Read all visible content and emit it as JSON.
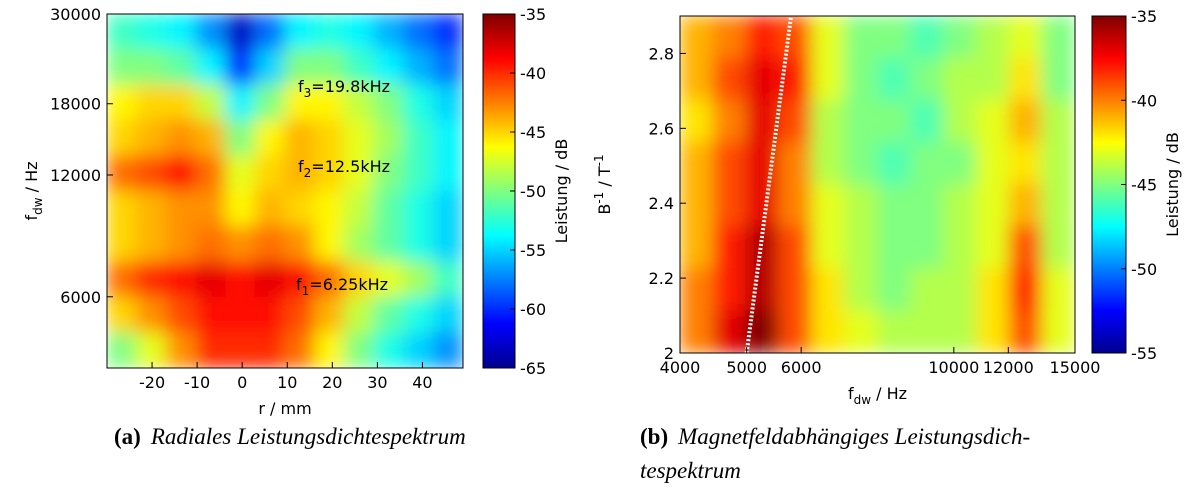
{
  "chart_data": [
    {
      "type": "contour",
      "xlabel": [
        {
          "t": "r / mm"
        }
      ],
      "ylabel": [
        {
          "t": "f"
        },
        {
          "t": "dw",
          "sub": true
        },
        {
          "t": " / Hz"
        }
      ],
      "colorbar_label": "Leistung / dB",
      "xscale": "linear",
      "yscale": "log",
      "xlim": [
        -30,
        49
      ],
      "ylim": [
        4000,
        30000
      ],
      "xticks": [
        -20,
        -10,
        0,
        10,
        20,
        30,
        40
      ],
      "yticks": [
        6000,
        12000,
        18000,
        30000
      ],
      "clim": [
        -65,
        -35
      ],
      "cticks": [
        -35,
        -40,
        -45,
        -50,
        -55,
        -60,
        -65
      ],
      "annotations": [
        [
          {
            "t": "f"
          },
          {
            "t": "3",
            "sub": true
          },
          {
            "t": "=19.8kHz"
          }
        ],
        [
          {
            "t": "f"
          },
          {
            "t": "2",
            "sub": true
          },
          {
            "t": "=12.5kHz"
          }
        ],
        [
          {
            "t": "f"
          },
          {
            "t": "1",
            "sub": true
          },
          {
            "t": "=6.25kHz"
          }
        ]
      ],
      "z": [
        [
          -52,
          -53,
          -54,
          -57,
          -63,
          -58,
          -54,
          -53,
          -54,
          -56,
          -58,
          -60
        ],
        [
          -50,
          -50,
          -51,
          -54,
          -60,
          -55,
          -50,
          -50,
          -52,
          -54,
          -56,
          -58
        ],
        [
          -46,
          -45,
          -45,
          -48,
          -54,
          -50,
          -46,
          -46,
          -48,
          -50,
          -53,
          -55
        ],
        [
          -45,
          -44,
          -43,
          -44,
          -50,
          -46,
          -44,
          -45,
          -47,
          -49,
          -52,
          -54
        ],
        [
          -42,
          -41,
          -39,
          -42,
          -47,
          -45,
          -44,
          -45,
          -47,
          -50,
          -52,
          -54
        ],
        [
          -45,
          -44,
          -43,
          -43,
          -46,
          -44,
          -45,
          -46,
          -48,
          -51,
          -53,
          -55
        ],
        [
          -45,
          -44,
          -43,
          -42,
          -43,
          -42,
          -43,
          -46,
          -49,
          -51,
          -53,
          -55
        ],
        [
          -42,
          -40,
          -39,
          -38,
          -39,
          -38,
          -39,
          -42,
          -45,
          -47,
          -49,
          -52
        ],
        [
          -45,
          -43,
          -41,
          -39,
          -39,
          -39,
          -41,
          -44,
          -48,
          -51,
          -53,
          -55
        ],
        [
          -50,
          -47,
          -43,
          -40,
          -40,
          -40,
          -42,
          -46,
          -50,
          -53,
          -55,
          -57
        ]
      ]
    },
    {
      "type": "contour",
      "xlabel": [
        {
          "t": "f"
        },
        {
          "t": "dw",
          "sub": true
        },
        {
          "t": " / Hz"
        }
      ],
      "ylabel": [
        {
          "t": "B"
        },
        {
          "t": "-1",
          "sup": true
        },
        {
          "t": " / T"
        },
        {
          "t": "-1",
          "sup": true
        }
      ],
      "colorbar_label": "Leistung / dB",
      "xscale": "log",
      "yscale": "linear",
      "xlim": [
        4000,
        15000
      ],
      "ylim": [
        2,
        2.9
      ],
      "xticks": [
        4000,
        5000,
        6000,
        10000,
        12000,
        15000
      ],
      "yticks": [
        2,
        2.2,
        2.4,
        2.6,
        2.8
      ],
      "clim": [
        -55,
        -35
      ],
      "cticks": [
        -35,
        -40,
        -45,
        -50,
        -55
      ],
      "overlay": {
        "x": [
          5000,
          5800
        ],
        "y": [
          2,
          2.9
        ],
        "color": "#ffffff"
      },
      "z": [
        [
          -41,
          -40,
          -38,
          -39,
          -43,
          -45,
          -45,
          -46,
          -45,
          -44,
          -43,
          -45
        ],
        [
          -41,
          -39,
          -37,
          -38,
          -43,
          -45,
          -46,
          -45,
          -44,
          -44,
          -42,
          -45
        ],
        [
          -42,
          -40,
          -37,
          -39,
          -44,
          -45,
          -45,
          -46,
          -44,
          -43,
          -41,
          -44
        ],
        [
          -41,
          -39,
          -37,
          -40,
          -44,
          -45,
          -46,
          -45,
          -45,
          -43,
          -42,
          -44
        ],
        [
          -41,
          -39,
          -37,
          -40,
          -43,
          -44,
          -45,
          -45,
          -44,
          -43,
          -41,
          -44
        ],
        [
          -41,
          -38,
          -36,
          -39,
          -43,
          -44,
          -45,
          -45,
          -44,
          -43,
          -39,
          -44
        ],
        [
          -40,
          -38,
          -36,
          -39,
          -42,
          -44,
          -45,
          -44,
          -44,
          -42,
          -38,
          -43
        ],
        [
          -40,
          -37,
          -35,
          -39,
          -42,
          -43,
          -44,
          -44,
          -44,
          -42,
          -39,
          -43
        ]
      ]
    }
  ],
  "captions": [
    {
      "label": "(a)",
      "lines": [
        "Radiales Leistungsdichtespektrum"
      ]
    },
    {
      "label": "(b)",
      "lines": [
        "Magnetfeldabhängiges Leistungsdich-",
        "tespektrum"
      ]
    }
  ]
}
